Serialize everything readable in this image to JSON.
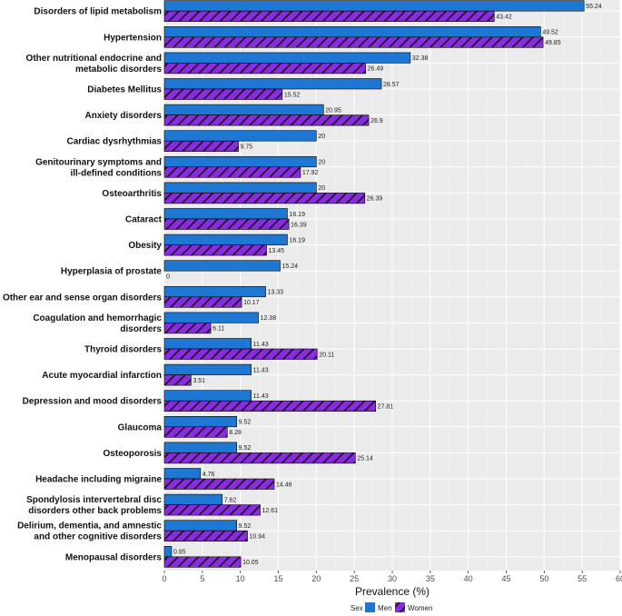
{
  "chart_data": {
    "type": "bar",
    "orientation": "horizontal",
    "title": "",
    "xlabel": "Prevalence (%)",
    "ylabel": "",
    "xlim": [
      0,
      60
    ],
    "xticks": [
      0,
      5,
      10,
      15,
      20,
      25,
      30,
      35,
      40,
      45,
      50,
      55,
      60
    ],
    "grid": true,
    "legend": {
      "title": "Sex",
      "position": "bottom"
    },
    "categories": [
      [
        "Disorders of lipid metabolism"
      ],
      [
        "Hypertension"
      ],
      [
        "Other nutritional endocrine and",
        "metabolic disorders"
      ],
      [
        "Diabetes Mellitus"
      ],
      [
        "Anxiety disorders"
      ],
      [
        "Cardiac dysrhythmias"
      ],
      [
        "Genitourinary symptoms and",
        "ill-defined conditions"
      ],
      [
        "Osteoarthritis"
      ],
      [
        "Cataract"
      ],
      [
        "Obesity"
      ],
      [
        "Hyperplasia of prostate"
      ],
      [
        "Other ear and sense organ disorders"
      ],
      [
        "Coagulation and hemorrhagic",
        "disorders"
      ],
      [
        "Thyroid disorders"
      ],
      [
        "Acute myocardial infarction"
      ],
      [
        "Depression and mood disorders"
      ],
      [
        "Glaucoma"
      ],
      [
        "Osteoporosis"
      ],
      [
        "Headache including migraine"
      ],
      [
        "Spondylosis intervertebral disc",
        "disorders other back problems"
      ],
      [
        "Delirium, dementia, and amnestic",
        "and other cognitive disorders"
      ],
      [
        "Menopausal disorders"
      ]
    ],
    "series": [
      {
        "name": "Men",
        "color": "#1F77D4",
        "pattern": "solid",
        "values": [
          55.24,
          49.52,
          32.38,
          28.57,
          20.95,
          20,
          20,
          20,
          16.19,
          16.19,
          15.24,
          13.33,
          12.38,
          11.43,
          11.43,
          11.43,
          9.52,
          9.52,
          4.76,
          7.62,
          9.52,
          0.95
        ]
      },
      {
        "name": "Women",
        "color": "#8A2BE2",
        "pattern": "diagonal-stripe",
        "values": [
          43.42,
          49.85,
          26.49,
          15.52,
          26.9,
          9.75,
          17.92,
          26.39,
          16.39,
          13.45,
          0,
          10.17,
          6.11,
          20.11,
          3.51,
          27.81,
          8.28,
          25.14,
          14.46,
          12.61,
          10.94,
          10.05
        ]
      }
    ]
  }
}
